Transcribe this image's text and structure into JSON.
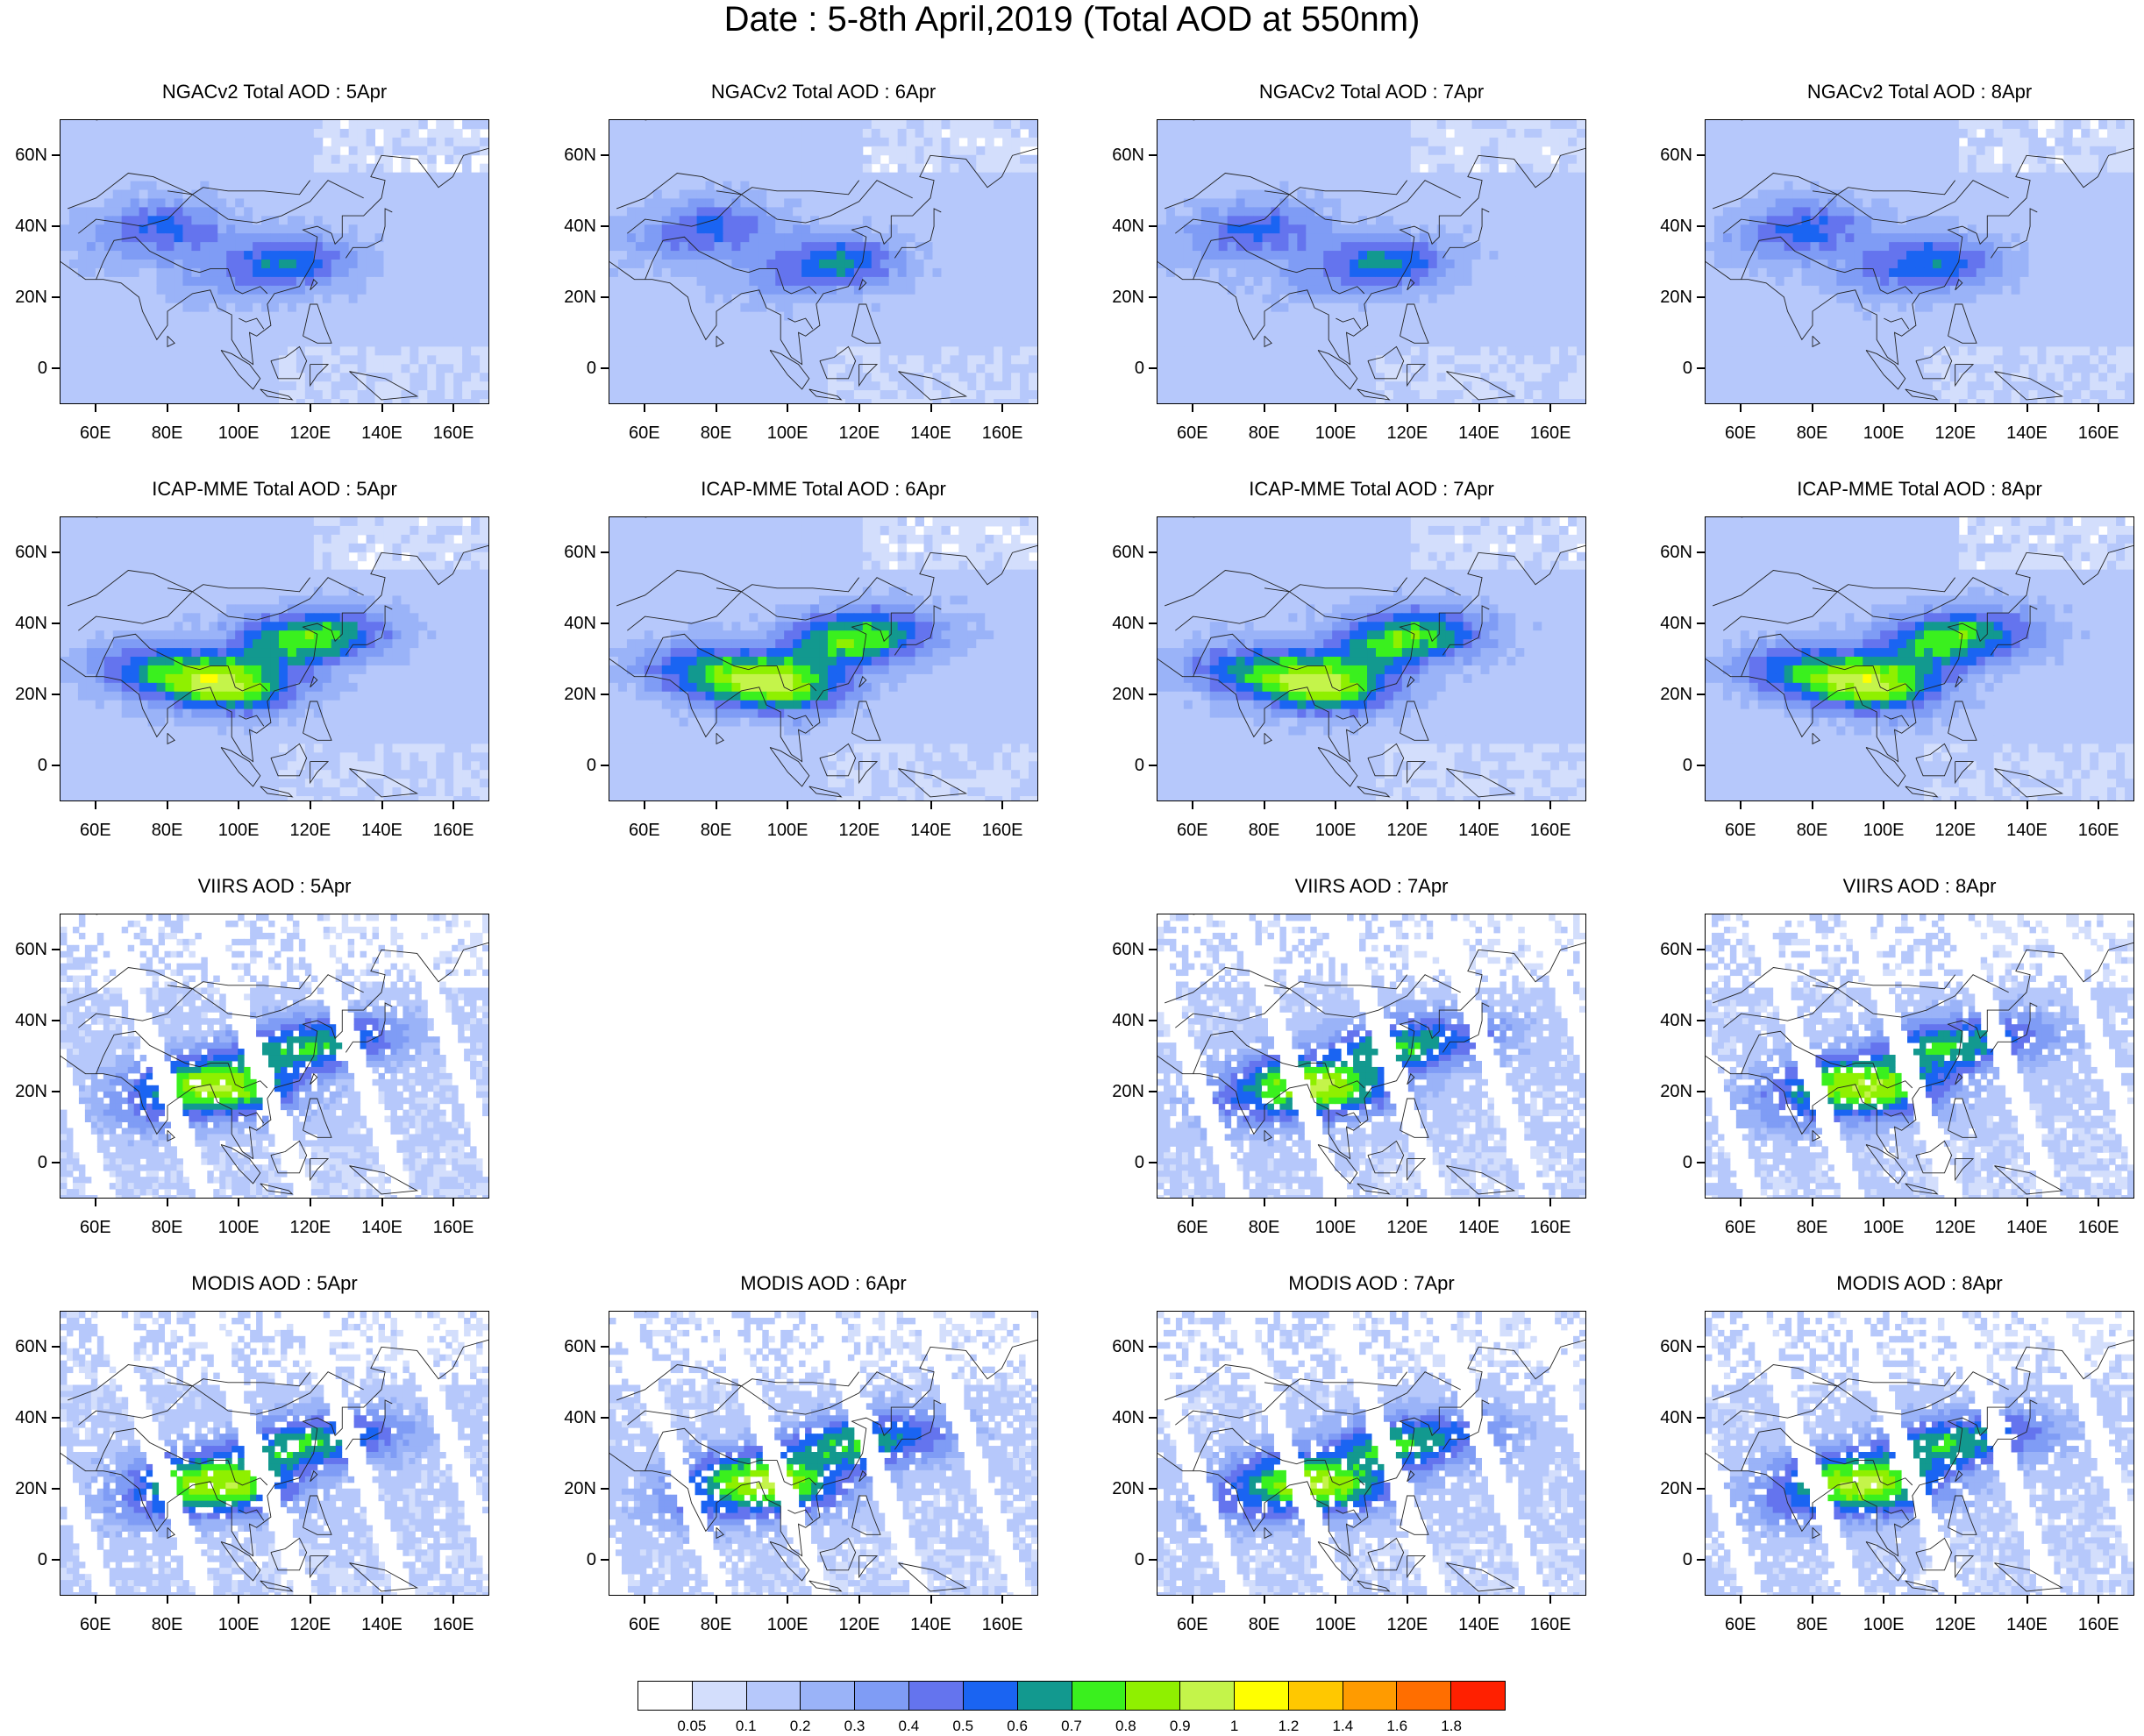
{
  "title": "Date : 5-8th April,2019 (Total AOD at 550nm)",
  "axes": {
    "lat_ticks": [
      "60N",
      "40N",
      "20N",
      "0"
    ],
    "lat_values": [
      60,
      40,
      20,
      0
    ],
    "lon_ticks": [
      "60E",
      "80E",
      "100E",
      "120E",
      "140E",
      "160E"
    ],
    "lon_values": [
      60,
      80,
      100,
      120,
      140,
      160
    ],
    "lon_range": [
      50,
      170
    ],
    "lat_range": [
      -10,
      70
    ]
  },
  "panels": [
    {
      "title": "NGACv2 Total AOD : 5Apr",
      "row": 0,
      "col": 0,
      "type": "model"
    },
    {
      "title": "NGACv2 Total AOD : 6Apr",
      "row": 0,
      "col": 1,
      "type": "model"
    },
    {
      "title": "NGACv2 Total AOD : 7Apr",
      "row": 0,
      "col": 2,
      "type": "model"
    },
    {
      "title": "NGACv2 Total AOD : 8Apr",
      "row": 0,
      "col": 3,
      "type": "model"
    },
    {
      "title": "ICAP-MME Total AOD : 5Apr",
      "row": 1,
      "col": 0,
      "type": "ensemble"
    },
    {
      "title": "ICAP-MME Total AOD : 6Apr",
      "row": 1,
      "col": 1,
      "type": "ensemble"
    },
    {
      "title": "ICAP-MME Total AOD : 7Apr",
      "row": 1,
      "col": 2,
      "type": "ensemble"
    },
    {
      "title": "ICAP-MME Total AOD : 8Apr",
      "row": 1,
      "col": 3,
      "type": "ensemble"
    },
    {
      "title": "VIIRS AOD : 5Apr",
      "row": 2,
      "col": 0,
      "type": "satellite"
    },
    {
      "title": "VIIRS AOD : 7Apr",
      "row": 2,
      "col": 2,
      "type": "satellite"
    },
    {
      "title": "VIIRS AOD : 8Apr",
      "row": 2,
      "col": 3,
      "type": "satellite"
    },
    {
      "title": "MODIS AOD : 5Apr",
      "row": 3,
      "col": 0,
      "type": "satellite"
    },
    {
      "title": "MODIS AOD : 6Apr",
      "row": 3,
      "col": 1,
      "type": "satellite"
    },
    {
      "title": "MODIS AOD : 7Apr",
      "row": 3,
      "col": 2,
      "type": "satellite"
    },
    {
      "title": "MODIS AOD : 8Apr",
      "row": 3,
      "col": 3,
      "type": "satellite"
    }
  ],
  "colorbar": {
    "labels": [
      "0.05",
      "0.1",
      "0.2",
      "0.3",
      "0.4",
      "0.5",
      "0.6",
      "0.7",
      "0.8",
      "0.9",
      "1",
      "1.2",
      "1.4",
      "1.6",
      "1.8"
    ],
    "colors": [
      "#ffffff",
      "#d3defc",
      "#b6c8fb",
      "#9ab3f8",
      "#7f9cf5",
      "#6474ee",
      "#1a64f2",
      "#12998f",
      "#3af01e",
      "#8ff000",
      "#c4f44a",
      "#ffff00",
      "#ffc800",
      "#ff9b00",
      "#ff6e00",
      "#ff2000"
    ]
  }
}
